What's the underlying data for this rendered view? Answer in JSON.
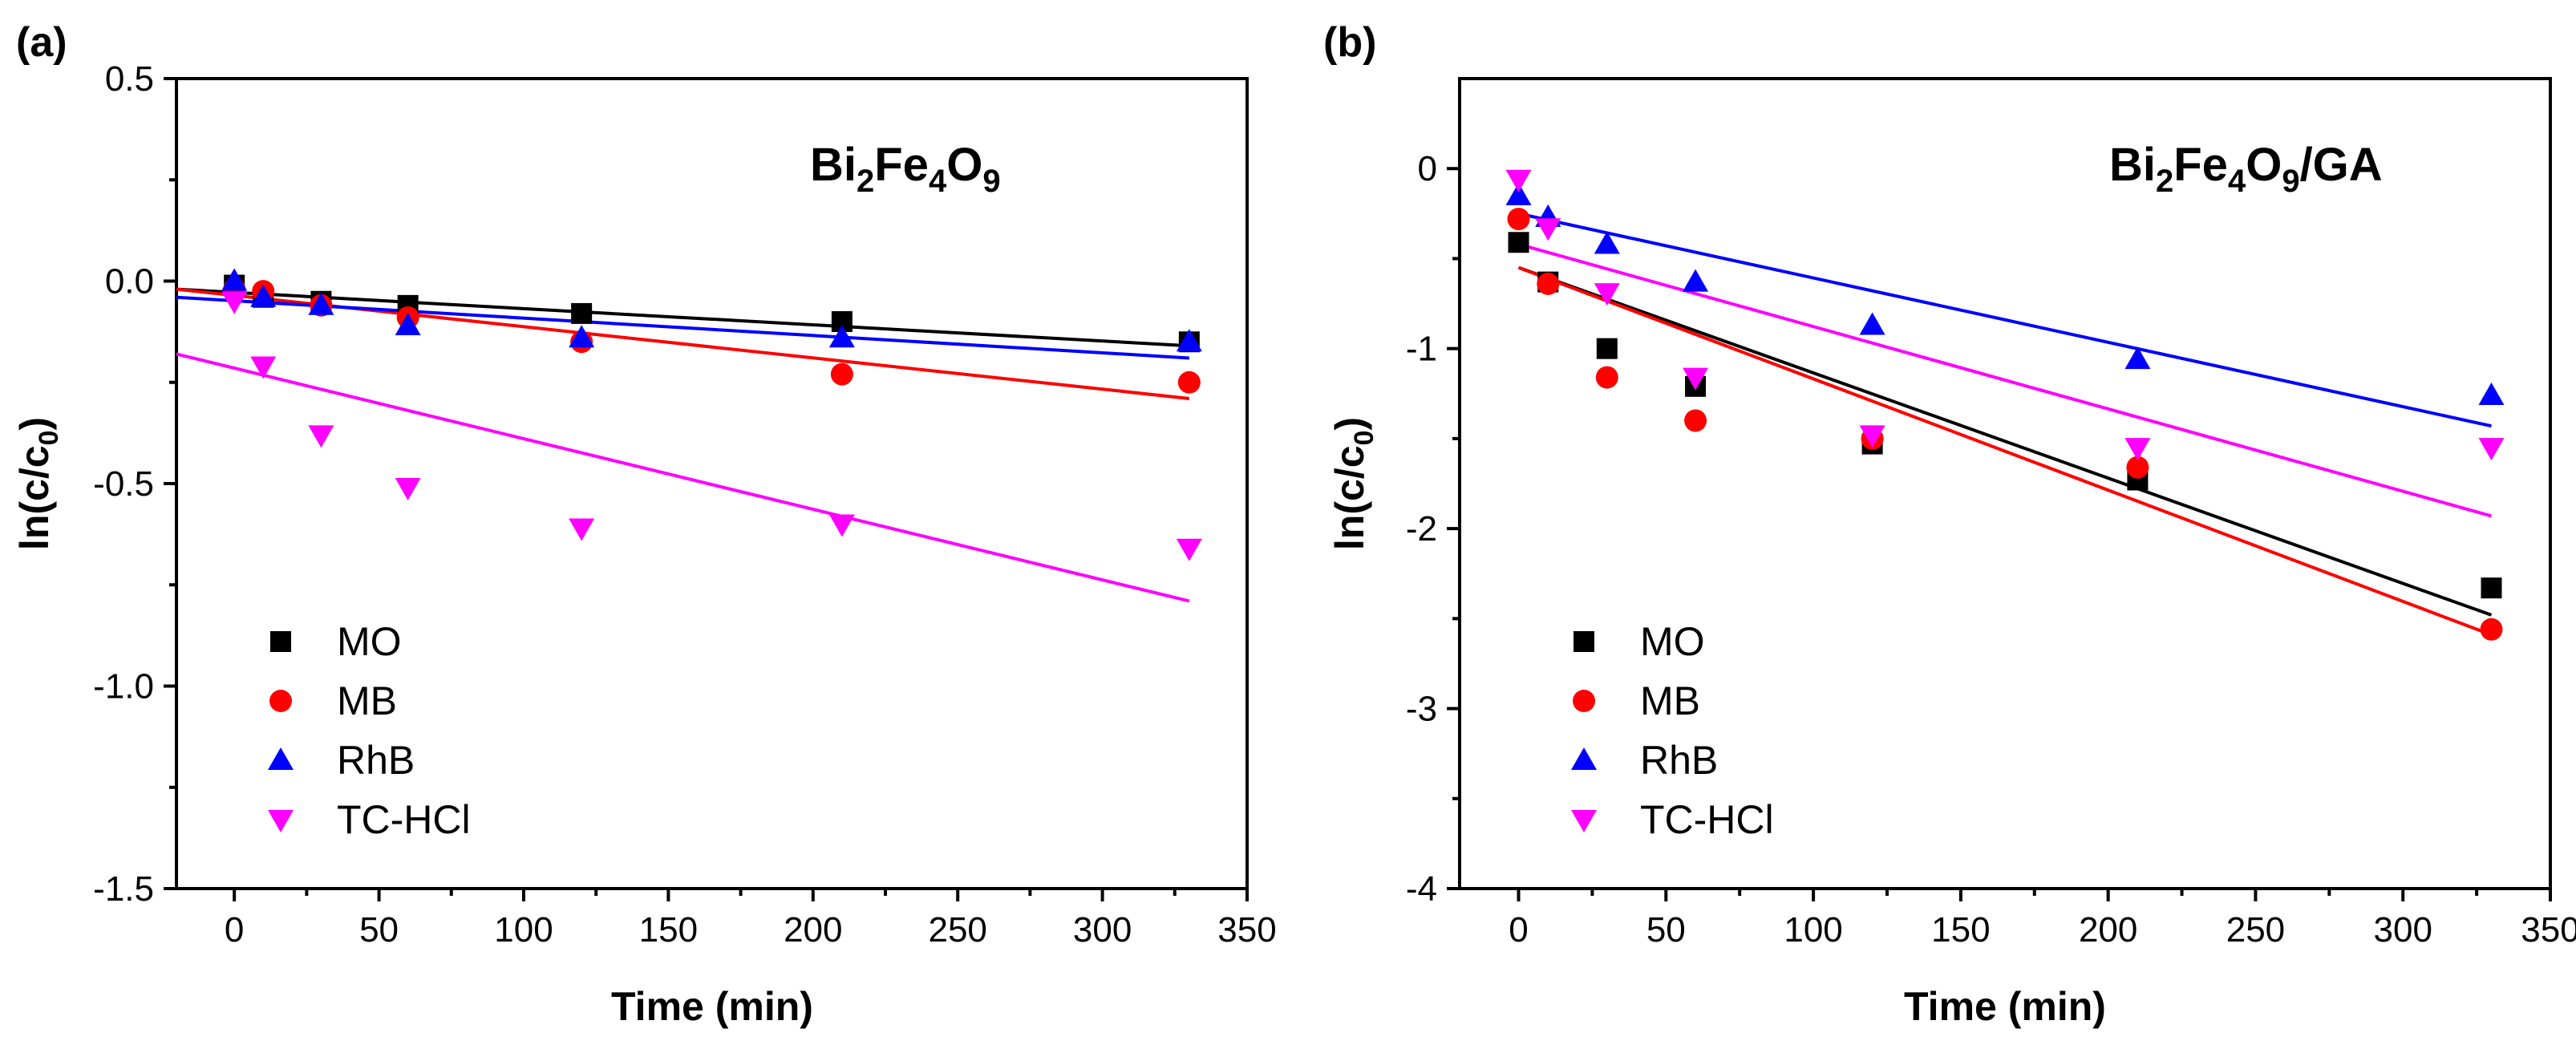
{
  "chart_data": [
    {
      "type": "scatter",
      "panel_label": "(a)",
      "annotation": {
        "base": "Bi",
        "sub1": "2",
        "mid1": "Fe",
        "sub2": "4",
        "mid2": "O",
        "sub3": "9",
        "suffix": ""
      },
      "xlabel": "Time (min)",
      "ylabel": "ln(c/c0)",
      "ylabel_parts": {
        "pre": "ln(c/c",
        "sub": "0",
        "post": ")"
      },
      "xlim": [
        -20,
        350
      ],
      "ylim": [
        -1.5,
        0.5
      ],
      "x_ticks": [
        0,
        50,
        100,
        150,
        200,
        250,
        300,
        350
      ],
      "x_tick_labels": [
        "0",
        "50",
        "100",
        "150",
        "200",
        "250",
        "300",
        "350"
      ],
      "y_ticks": [
        0.5,
        0.0,
        -0.5,
        -1.0,
        -1.5
      ],
      "y_tick_labels": [
        "0.5",
        "0.0",
        "-0.5",
        "-1.0",
        "-1.5"
      ],
      "legend_position": "bottom-left",
      "series": [
        {
          "name": "MO",
          "color": "#000000",
          "marker": "square",
          "x": [
            0,
            10,
            30,
            60,
            120,
            210,
            330
          ],
          "y": [
            -0.01,
            -0.04,
            -0.05,
            -0.06,
            -0.08,
            -0.1,
            -0.15
          ],
          "fit": [
            [
              -20,
              -0.02
            ],
            [
              330,
              -0.16
            ]
          ]
        },
        {
          "name": "MB",
          "color": "#ff0000",
          "marker": "circle",
          "x": [
            0,
            10,
            30,
            60,
            120,
            210,
            330
          ],
          "y": [
            -0.02,
            -0.025,
            -0.06,
            -0.09,
            -0.15,
            -0.23,
            -0.25
          ],
          "fit": [
            [
              -20,
              -0.02
            ],
            [
              330,
              -0.29
            ]
          ]
        },
        {
          "name": "RhB",
          "color": "#0000ff",
          "marker": "triangle-up",
          "x": [
            0,
            10,
            30,
            60,
            120,
            210,
            330
          ],
          "y": [
            0.0,
            -0.04,
            -0.06,
            -0.11,
            -0.14,
            -0.14,
            -0.15
          ],
          "fit": [
            [
              -20,
              -0.04
            ],
            [
              330,
              -0.19
            ]
          ]
        },
        {
          "name": "TC-HCl",
          "color": "#ff00ff",
          "marker": "triangle-down",
          "x": [
            0,
            10,
            30,
            60,
            120,
            210,
            330
          ],
          "y": [
            -0.05,
            -0.21,
            -0.38,
            -0.51,
            -0.61,
            -0.6,
            -0.66
          ],
          "fit": [
            [
              -20,
              -0.18
            ],
            [
              330,
              -0.79
            ]
          ]
        }
      ]
    },
    {
      "type": "scatter",
      "panel_label": "(b)",
      "annotation": {
        "base": "Bi",
        "sub1": "2",
        "mid1": "Fe",
        "sub2": "4",
        "mid2": "O",
        "sub3": "9",
        "suffix": "/GA"
      },
      "xlabel": "Time (min)",
      "ylabel": "ln(c/c0)",
      "ylabel_parts": {
        "pre": "ln(c/c",
        "sub": "0",
        "post": ")"
      },
      "xlim": [
        -20,
        350
      ],
      "ylim": [
        -4,
        0.5
      ],
      "x_ticks": [
        0,
        50,
        100,
        150,
        200,
        250,
        300,
        350
      ],
      "x_tick_labels": [
        "0",
        "50",
        "100",
        "150",
        "200",
        "250",
        "300",
        "350"
      ],
      "y_ticks": [
        0,
        -1,
        -2,
        -3,
        -4
      ],
      "y_tick_labels": [
        "0",
        "-1",
        "-2",
        "-3",
        "-4"
      ],
      "legend_position": "bottom-left",
      "series": [
        {
          "name": "MO",
          "color": "#000000",
          "marker": "square",
          "x": [
            0,
            10,
            30,
            60,
            120,
            210,
            330
          ],
          "y": [
            -0.41,
            -0.63,
            -1.0,
            -1.21,
            -1.53,
            -1.73,
            -2.33
          ],
          "fit": [
            [
              0,
              -0.55
            ],
            [
              330,
              -2.48
            ]
          ]
        },
        {
          "name": "MB",
          "color": "#ff0000",
          "marker": "circle",
          "x": [
            0,
            10,
            30,
            60,
            120,
            210,
            330
          ],
          "y": [
            -0.28,
            -0.64,
            -1.16,
            -1.4,
            -1.5,
            -1.66,
            -2.56
          ],
          "fit": [
            [
              0,
              -0.55
            ],
            [
              330,
              -2.59
            ]
          ]
        },
        {
          "name": "RhB",
          "color": "#0000ff",
          "marker": "triangle-up",
          "x": [
            0,
            10,
            30,
            60,
            120,
            210,
            330
          ],
          "y": [
            -0.15,
            -0.27,
            -0.42,
            -0.63,
            -0.87,
            -1.06,
            -1.26
          ],
          "fit": [
            [
              0,
              -0.25
            ],
            [
              330,
              -1.43
            ]
          ]
        },
        {
          "name": "TC-HCl",
          "color": "#ff00ff",
          "marker": "triangle-down",
          "x": [
            0,
            10,
            30,
            60,
            120,
            210,
            330
          ],
          "y": [
            -0.06,
            -0.33,
            -0.69,
            -1.16,
            -1.48,
            -1.55,
            -1.55
          ],
          "fit": [
            [
              0,
              -0.42
            ],
            [
              330,
              -1.93
            ]
          ]
        }
      ]
    }
  ]
}
